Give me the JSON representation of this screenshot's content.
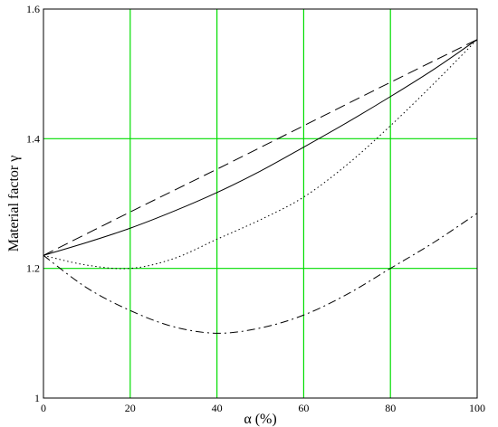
{
  "chart_data": {
    "type": "line",
    "title": "",
    "xlabel": "α (%)",
    "ylabel": "Material factor γ",
    "xlim": [
      0,
      100
    ],
    "ylim": [
      1.0,
      1.6
    ],
    "xticks": [
      "0",
      "20",
      "40",
      "60",
      "80",
      "100"
    ],
    "yticks": [
      "1",
      "1.2",
      "1.4",
      "1.6"
    ],
    "grid": true,
    "grid_color": "#00dd00",
    "line_color": "#000000",
    "series": [
      {
        "style": "solid",
        "x": [
          0,
          10,
          20,
          30,
          40,
          50,
          60,
          70,
          80,
          90,
          100
        ],
        "y": [
          1.22,
          1.24,
          1.262,
          1.288,
          1.317,
          1.35,
          1.387,
          1.425,
          1.465,
          1.507,
          1.553
        ]
      },
      {
        "style": "dashed",
        "x": [
          0,
          20,
          40,
          60,
          80,
          100
        ],
        "y": [
          1.22,
          1.287,
          1.353,
          1.42,
          1.487,
          1.553
        ]
      },
      {
        "style": "dotted",
        "x": [
          0,
          10,
          20,
          30,
          40,
          50,
          60,
          70,
          80,
          90,
          100
        ],
        "y": [
          1.22,
          1.205,
          1.2,
          1.215,
          1.245,
          1.275,
          1.31,
          1.36,
          1.42,
          1.485,
          1.553
        ]
      },
      {
        "style": "dashdot",
        "x": [
          0,
          10,
          20,
          30,
          40,
          50,
          60,
          70,
          80,
          90,
          100
        ],
        "y": [
          1.22,
          1.17,
          1.135,
          1.11,
          1.1,
          1.108,
          1.128,
          1.16,
          1.2,
          1.24,
          1.285
        ]
      }
    ]
  }
}
